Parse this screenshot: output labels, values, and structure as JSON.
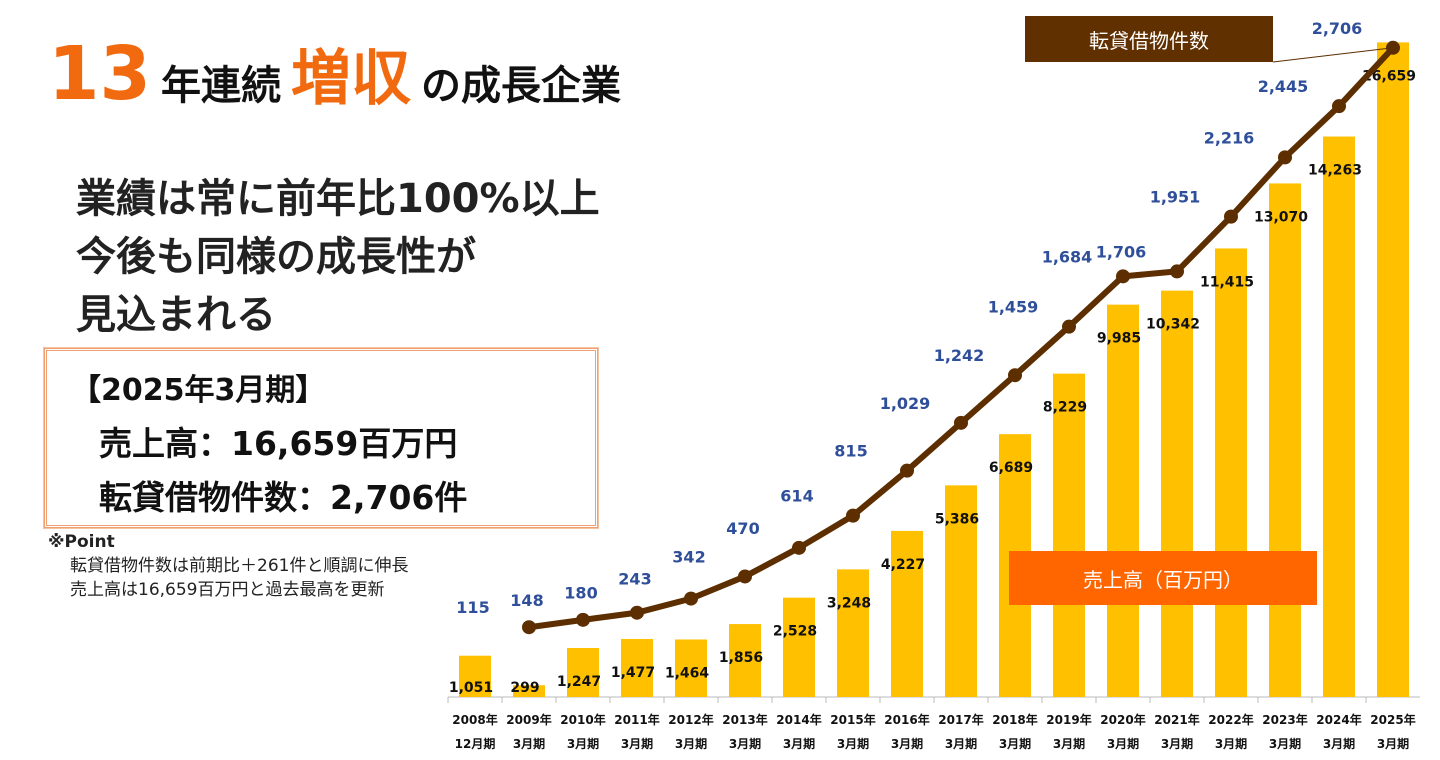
{
  "title": {
    "num": "13",
    "part1": "年連続",
    "highlight": "増収",
    "part2": "の成長企業"
  },
  "lead": [
    "業績は常に前年比100%以上",
    "今後も同様の成長性が",
    "見込まれる"
  ],
  "summary": {
    "period": "【2025年3月期】",
    "sales": "売上高：16,659百万円",
    "count": "転貸借物件数：2,706件"
  },
  "note": {
    "head": "※Point",
    "lines": [
      "転貸借物件数は前期比＋261件と順調に伸長",
      "売上高は16,659百万円と過去最高を更新"
    ]
  },
  "colors": {
    "bar": "#ffc000",
    "line": "#5c2e00",
    "line_label": "#2f4f9a",
    "accent": "#ff6600"
  },
  "chart_data": {
    "type": "bar+line",
    "categories": [
      [
        "2008年",
        "12月期"
      ],
      [
        "2009年",
        "3月期"
      ],
      [
        "2010年",
        "3月期"
      ],
      [
        "2011年",
        "3月期"
      ],
      [
        "2012年",
        "3月期"
      ],
      [
        "2013年",
        "3月期"
      ],
      [
        "2014年",
        "3月期"
      ],
      [
        "2015年",
        "3月期"
      ],
      [
        "2016年",
        "3月期"
      ],
      [
        "2017年",
        "3月期"
      ],
      [
        "2018年",
        "3月期"
      ],
      [
        "2019年",
        "3月期"
      ],
      [
        "2020年",
        "3月期"
      ],
      [
        "2021年",
        "3月期"
      ],
      [
        "2022年",
        "3月期"
      ],
      [
        "2023年",
        "3月期"
      ],
      [
        "2024年",
        "3月期"
      ],
      [
        "2025年",
        "3月期"
      ]
    ],
    "series": [
      {
        "name": "売上高（百万円）",
        "type": "bar",
        "values": [
          1051,
          299,
          1247,
          1477,
          1464,
          1856,
          2528,
          3248,
          4227,
          5386,
          6689,
          8229,
          9985,
          10342,
          11415,
          13070,
          14263,
          16659
        ],
        "labels": [
          "1,051",
          "299",
          "1,247",
          "1,477",
          "1,464",
          "1,856",
          "2,528",
          "3,248",
          "4,227",
          "5,386",
          "6,689",
          "8,229",
          "9,985",
          "10,342",
          "11,415",
          "13,070",
          "14,263",
          "16,659"
        ],
        "ylim": [
          0,
          17000
        ]
      },
      {
        "name": "転貸借物件数",
        "type": "line",
        "values": [
          null,
          115,
          148,
          180,
          243,
          342,
          470,
          614,
          815,
          1029,
          1242,
          1459,
          1684,
          1706,
          1951,
          2216,
          2445,
          2706
        ],
        "labels": [
          null,
          "115",
          "148",
          "180",
          "243",
          "342",
          "470",
          "614",
          "815",
          "1,029",
          "1,242",
          "1,459",
          "1,684",
          "1,706",
          "1,951",
          "2,216",
          "2,445",
          "2,706"
        ],
        "ylim": [
          -197,
          2790
        ]
      }
    ],
    "legend": [
      "売上高（百万円）",
      "転貸借物件数"
    ]
  }
}
